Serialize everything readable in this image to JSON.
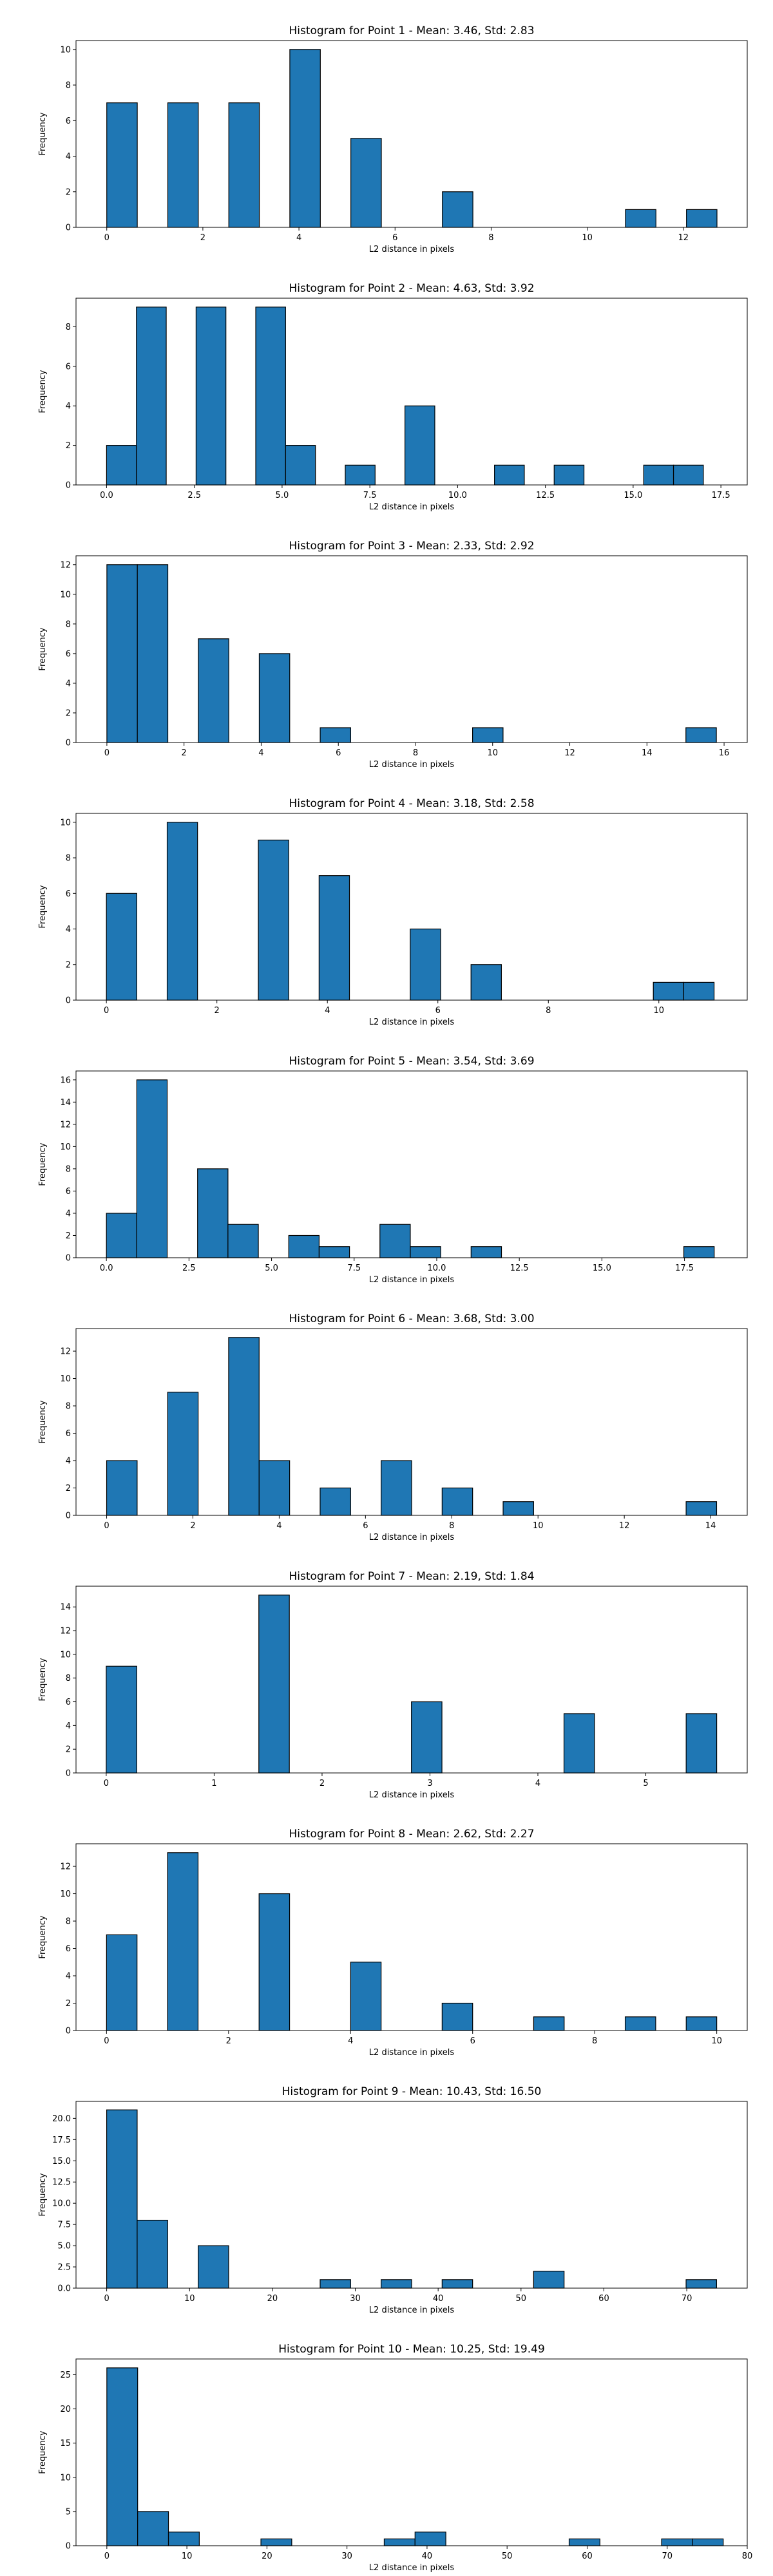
{
  "chart_data": [
    {
      "type": "bar",
      "title": "Histogram for Point 1 - Mean: 3.46, Std: 2.83",
      "xlabel": "L2 distance in pixels",
      "ylabel": "Frequency",
      "xlim": [
        -0.64,
        13.33
      ],
      "ylim": [
        0,
        10.5
      ],
      "xticks": [
        0,
        2,
        4,
        6,
        8,
        10,
        12
      ],
      "xtick_labels": [
        "0",
        "2",
        "4",
        "6",
        "8",
        "10",
        "12"
      ],
      "yticks": [
        0,
        2,
        4,
        6,
        8,
        10
      ],
      "ytick_labels": [
        "0",
        "2",
        "4",
        "6",
        "8",
        "10"
      ],
      "bins": [
        {
          "x0": 0.0,
          "x1": 0.635,
          "value": 7
        },
        {
          "x0": 1.27,
          "x1": 1.905,
          "value": 7
        },
        {
          "x0": 2.54,
          "x1": 3.175,
          "value": 7
        },
        {
          "x0": 3.81,
          "x1": 4.445,
          "value": 10
        },
        {
          "x0": 5.08,
          "x1": 5.715,
          "value": 5
        },
        {
          "x0": 6.985,
          "x1": 7.62,
          "value": 2
        },
        {
          "x0": 10.795,
          "x1": 11.43,
          "value": 1
        },
        {
          "x0": 12.065,
          "x1": 12.7,
          "value": 1
        }
      ],
      "color": "#1f77b4",
      "edge_color": "#000000",
      "grid": false
    },
    {
      "type": "bar",
      "title": "Histogram for Point 2 - Mean: 4.63, Std: 3.92",
      "xlabel": "L2 distance in pixels",
      "ylabel": "Frequency",
      "xlim": [
        -0.87,
        18.25
      ],
      "ylim": [
        0,
        9.45
      ],
      "xticks": [
        0.0,
        2.5,
        5.0,
        7.5,
        10.0,
        12.5,
        15.0,
        17.5
      ],
      "xtick_labels": [
        "0.0",
        "2.5",
        "5.0",
        "7.5",
        "10.0",
        "12.5",
        "15.0",
        "17.5"
      ],
      "yticks": [
        0,
        2,
        4,
        6,
        8
      ],
      "ytick_labels": [
        "0",
        "2",
        "4",
        "6",
        "8"
      ],
      "bins": [
        {
          "x0": 0.0,
          "x1": 0.85,
          "value": 2
        },
        {
          "x0": 0.85,
          "x1": 1.7,
          "value": 9
        },
        {
          "x0": 2.55,
          "x1": 3.4,
          "value": 9
        },
        {
          "x0": 4.25,
          "x1": 5.1,
          "value": 9
        },
        {
          "x0": 5.1,
          "x1": 5.95,
          "value": 2
        },
        {
          "x0": 6.8,
          "x1": 7.65,
          "value": 1
        },
        {
          "x0": 8.5,
          "x1": 9.35,
          "value": 4
        },
        {
          "x0": 11.05,
          "x1": 11.9,
          "value": 1
        },
        {
          "x0": 12.75,
          "x1": 13.6,
          "value": 1
        },
        {
          "x0": 15.3,
          "x1": 16.15,
          "value": 1
        },
        {
          "x0": 16.15,
          "x1": 17.0,
          "value": 1
        }
      ],
      "color": "#1f77b4",
      "edge_color": "#000000",
      "grid": false
    },
    {
      "type": "bar",
      "title": "Histogram for Point 3 - Mean: 2.33, Std: 2.92",
      "xlabel": "L2 distance in pixels",
      "ylabel": "Frequency",
      "xlim": [
        -0.8,
        16.6
      ],
      "ylim": [
        0,
        12.6
      ],
      "xticks": [
        0,
        2,
        4,
        6,
        8,
        10,
        12,
        14,
        16
      ],
      "xtick_labels": [
        "0",
        "2",
        "4",
        "6",
        "8",
        "10",
        "12",
        "14",
        "16"
      ],
      "yticks": [
        0,
        2,
        4,
        6,
        8,
        10,
        12
      ],
      "ytick_labels": [
        "0",
        "2",
        "4",
        "6",
        "8",
        "10",
        "12"
      ],
      "bins": [
        {
          "x0": 0.0,
          "x1": 0.79,
          "value": 12
        },
        {
          "x0": 0.79,
          "x1": 1.58,
          "value": 12
        },
        {
          "x0": 2.37,
          "x1": 3.16,
          "value": 7
        },
        {
          "x0": 3.95,
          "x1": 4.74,
          "value": 6
        },
        {
          "x0": 5.53,
          "x1": 6.32,
          "value": 1
        },
        {
          "x0": 9.48,
          "x1": 10.27,
          "value": 1
        },
        {
          "x0": 15.01,
          "x1": 15.8,
          "value": 1
        }
      ],
      "color": "#1f77b4",
      "edge_color": "#000000",
      "grid": false
    },
    {
      "type": "bar",
      "title": "Histogram for Point 4 - Mean: 3.18, Std: 2.58",
      "xlabel": "L2 distance in pixels",
      "ylabel": "Frequency",
      "xlim": [
        -0.55,
        11.6
      ],
      "ylim": [
        0,
        10.5
      ],
      "xticks": [
        0,
        2,
        4,
        6,
        8,
        10
      ],
      "xtick_labels": [
        "0",
        "2",
        "4",
        "6",
        "8",
        "10"
      ],
      "yticks": [
        0,
        2,
        4,
        6,
        8,
        10
      ],
      "ytick_labels": [
        "0",
        "2",
        "4",
        "6",
        "8",
        "10"
      ],
      "bins": [
        {
          "x0": 0.0,
          "x1": 0.55,
          "value": 6
        },
        {
          "x0": 1.1,
          "x1": 1.65,
          "value": 10
        },
        {
          "x0": 2.75,
          "x1": 3.3,
          "value": 9
        },
        {
          "x0": 3.85,
          "x1": 4.4,
          "value": 7
        },
        {
          "x0": 5.5,
          "x1": 6.05,
          "value": 4
        },
        {
          "x0": 6.6,
          "x1": 7.15,
          "value": 2
        },
        {
          "x0": 9.9,
          "x1": 10.45,
          "value": 1
        },
        {
          "x0": 10.45,
          "x1": 11.0,
          "value": 1
        }
      ],
      "color": "#1f77b4",
      "edge_color": "#000000",
      "grid": false
    },
    {
      "type": "bar",
      "title": "Histogram for Point 5 - Mean: 3.54, Std: 3.69",
      "xlabel": "L2 distance in pixels",
      "ylabel": "Frequency",
      "xlim": [
        -0.92,
        19.4
      ],
      "ylim": [
        0,
        16.8
      ],
      "xticks": [
        0.0,
        2.5,
        5.0,
        7.5,
        10.0,
        12.5,
        15.0,
        17.5
      ],
      "xtick_labels": [
        "0.0",
        "2.5",
        "5.0",
        "7.5",
        "10.0",
        "12.5",
        "15.0",
        "17.5"
      ],
      "yticks": [
        0,
        2,
        4,
        6,
        8,
        10,
        12,
        14,
        16
      ],
      "ytick_labels": [
        "0",
        "2",
        "4",
        "6",
        "8",
        "10",
        "12",
        "14",
        "16"
      ],
      "bins": [
        {
          "x0": 0.0,
          "x1": 0.92,
          "value": 4
        },
        {
          "x0": 0.92,
          "x1": 1.84,
          "value": 16
        },
        {
          "x0": 2.76,
          "x1": 3.68,
          "value": 8
        },
        {
          "x0": 3.68,
          "x1": 4.6,
          "value": 3
        },
        {
          "x0": 5.52,
          "x1": 6.44,
          "value": 2
        },
        {
          "x0": 6.44,
          "x1": 7.36,
          "value": 1
        },
        {
          "x0": 8.28,
          "x1": 9.2,
          "value": 3
        },
        {
          "x0": 9.2,
          "x1": 10.12,
          "value": 1
        },
        {
          "x0": 11.04,
          "x1": 11.96,
          "value": 1
        },
        {
          "x0": 17.48,
          "x1": 18.4,
          "value": 1
        }
      ],
      "color": "#1f77b4",
      "edge_color": "#000000",
      "grid": false
    },
    {
      "type": "bar",
      "title": "Histogram for Point 6 - Mean: 3.68, Std: 3.00",
      "xlabel": "L2 distance in pixels",
      "ylabel": "Frequency",
      "xlim": [
        -0.71,
        14.85
      ],
      "ylim": [
        0,
        13.65
      ],
      "xticks": [
        0,
        2,
        4,
        6,
        8,
        10,
        12,
        14
      ],
      "xtick_labels": [
        "0",
        "2",
        "4",
        "6",
        "8",
        "10",
        "12",
        "14"
      ],
      "yticks": [
        0,
        2,
        4,
        6,
        8,
        10,
        12
      ],
      "ytick_labels": [
        "0",
        "2",
        "4",
        "6",
        "8",
        "10",
        "12"
      ],
      "bins": [
        {
          "x0": 0.0,
          "x1": 0.707,
          "value": 4
        },
        {
          "x0": 1.414,
          "x1": 2.121,
          "value": 9
        },
        {
          "x0": 2.828,
          "x1": 3.535,
          "value": 13
        },
        {
          "x0": 3.535,
          "x1": 4.242,
          "value": 4
        },
        {
          "x0": 4.949,
          "x1": 5.656,
          "value": 2
        },
        {
          "x0": 6.363,
          "x1": 7.07,
          "value": 4
        },
        {
          "x0": 7.777,
          "x1": 8.484,
          "value": 2
        },
        {
          "x0": 9.191,
          "x1": 9.898,
          "value": 1
        },
        {
          "x0": 13.433,
          "x1": 14.14,
          "value": 1
        }
      ],
      "color": "#1f77b4",
      "edge_color": "#000000",
      "grid": false
    },
    {
      "type": "bar",
      "title": "Histogram for Point 7 - Mean: 2.19, Std: 1.84",
      "xlabel": "L2 distance in pixels",
      "ylabel": "Frequency",
      "xlim": [
        -0.28,
        5.94
      ],
      "ylim": [
        0,
        15.75
      ],
      "xticks": [
        0,
        1,
        2,
        3,
        4,
        5
      ],
      "xtick_labels": [
        "0",
        "1",
        "2",
        "3",
        "4",
        "5"
      ],
      "yticks": [
        0,
        2,
        4,
        6,
        8,
        10,
        12,
        14
      ],
      "ytick_labels": [
        "0",
        "2",
        "4",
        "6",
        "8",
        "10",
        "12",
        "14"
      ],
      "bins": [
        {
          "x0": 0.0,
          "x1": 0.283,
          "value": 9
        },
        {
          "x0": 1.414,
          "x1": 1.697,
          "value": 15
        },
        {
          "x0": 2.828,
          "x1": 3.111,
          "value": 6
        },
        {
          "x0": 4.242,
          "x1": 4.525,
          "value": 5
        },
        {
          "x0": 5.374,
          "x1": 5.657,
          "value": 5
        }
      ],
      "color": "#1f77b4",
      "edge_color": "#000000",
      "grid": false
    },
    {
      "type": "bar",
      "title": "Histogram for Point 8 - Mean: 2.62, Std: 2.27",
      "xlabel": "L2 distance in pixels",
      "ylabel": "Frequency",
      "xlim": [
        -0.5,
        10.5
      ],
      "ylim": [
        0,
        13.65
      ],
      "xticks": [
        0,
        2,
        4,
        6,
        8,
        10
      ],
      "xtick_labels": [
        "0",
        "2",
        "4",
        "6",
        "8",
        "10"
      ],
      "yticks": [
        0,
        2,
        4,
        6,
        8,
        10,
        12
      ],
      "ytick_labels": [
        "0",
        "2",
        "4",
        "6",
        "8",
        "10",
        "12"
      ],
      "bins": [
        {
          "x0": 0.0,
          "x1": 0.5,
          "value": 7
        },
        {
          "x0": 1.0,
          "x1": 1.5,
          "value": 13
        },
        {
          "x0": 2.5,
          "x1": 3.0,
          "value": 10
        },
        {
          "x0": 4.0,
          "x1": 4.5,
          "value": 5
        },
        {
          "x0": 5.5,
          "x1": 6.0,
          "value": 2
        },
        {
          "x0": 7.0,
          "x1": 7.5,
          "value": 1
        },
        {
          "x0": 8.5,
          "x1": 9.0,
          "value": 1
        },
        {
          "x0": 9.5,
          "x1": 10.0,
          "value": 1
        }
      ],
      "color": "#1f77b4",
      "edge_color": "#000000",
      "grid": false
    },
    {
      "type": "bar",
      "title": "Histogram for Point 9 - Mean: 10.43, Std: 16.50",
      "xlabel": "L2 distance in pixels",
      "ylabel": "Frequency",
      "xlim": [
        -3.7,
        77.3
      ],
      "ylim": [
        0,
        22.0
      ],
      "xticks": [
        0,
        10,
        20,
        30,
        40,
        50,
        60,
        70
      ],
      "xtick_labels": [
        "0",
        "10",
        "20",
        "30",
        "40",
        "50",
        "60",
        "70"
      ],
      "yticks": [
        0.0,
        2.5,
        5.0,
        7.5,
        10.0,
        12.5,
        15.0,
        17.5,
        20.0
      ],
      "ytick_labels": [
        "0.0",
        "2.5",
        "5.0",
        "7.5",
        "10.0",
        "12.5",
        "15.0",
        "17.5",
        "20.0"
      ],
      "bins": [
        {
          "x0": 0.0,
          "x1": 3.68,
          "value": 21
        },
        {
          "x0": 3.68,
          "x1": 7.36,
          "value": 8
        },
        {
          "x0": 11.04,
          "x1": 14.72,
          "value": 5
        },
        {
          "x0": 25.76,
          "x1": 29.44,
          "value": 1
        },
        {
          "x0": 33.12,
          "x1": 36.8,
          "value": 1
        },
        {
          "x0": 40.48,
          "x1": 44.16,
          "value": 1
        },
        {
          "x0": 51.52,
          "x1": 55.2,
          "value": 2
        },
        {
          "x0": 69.92,
          "x1": 73.6,
          "value": 1
        }
      ],
      "color": "#1f77b4",
      "edge_color": "#000000",
      "grid": false
    },
    {
      "type": "bar",
      "title": "Histogram for Point 10 - Mean: 10.25, Std: 19.49",
      "xlabel": "L2 distance in pixels",
      "ylabel": "Frequency",
      "xlim": [
        -3.85,
        80.0
      ],
      "ylim": [
        0,
        27.3
      ],
      "xticks": [
        0,
        10,
        20,
        30,
        40,
        50,
        60,
        70,
        80
      ],
      "xtick_labels": [
        "0",
        "10",
        "20",
        "30",
        "40",
        "50",
        "60",
        "70",
        "80"
      ],
      "yticks": [
        0,
        5,
        10,
        15,
        20,
        25
      ],
      "ytick_labels": [
        "0",
        "5",
        "10",
        "15",
        "20",
        "25"
      ],
      "bins": [
        {
          "x0": 0.0,
          "x1": 3.85,
          "value": 26
        },
        {
          "x0": 3.85,
          "x1": 7.7,
          "value": 5
        },
        {
          "x0": 7.7,
          "x1": 11.55,
          "value": 2
        },
        {
          "x0": 19.25,
          "x1": 23.1,
          "value": 1
        },
        {
          "x0": 34.65,
          "x1": 38.5,
          "value": 1
        },
        {
          "x0": 38.5,
          "x1": 42.35,
          "value": 2
        },
        {
          "x0": 57.75,
          "x1": 61.6,
          "value": 1
        },
        {
          "x0": 69.3,
          "x1": 73.15,
          "value": 1
        },
        {
          "x0": 73.15,
          "x1": 77.0,
          "value": 1
        }
      ],
      "color": "#1f77b4",
      "edge_color": "#000000",
      "grid": false
    }
  ]
}
